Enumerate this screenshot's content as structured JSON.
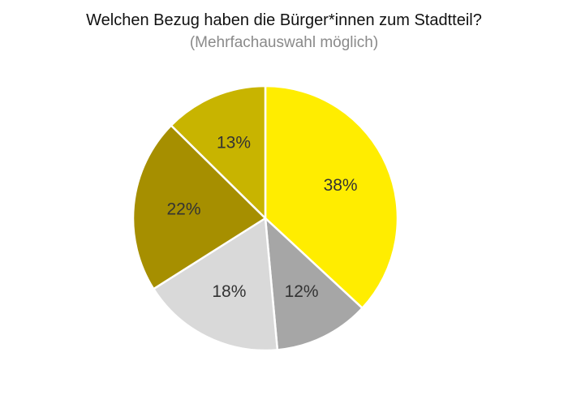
{
  "chart_data": {
    "type": "pie",
    "title": "Welchen Bezug haben die Bürger*innen zum Stadtteil?",
    "subtitle": "(Mehrfachauswahl möglich)",
    "start": "12 o'clock",
    "direction": "clockwise",
    "legend": "none",
    "slices": [
      {
        "value": 38,
        "label": "38%",
        "color": "#FFED00"
      },
      {
        "value": 12,
        "label": "12%",
        "color": "#A6A6A6"
      },
      {
        "value": 18,
        "label": "18%",
        "color": "#D9D9D9"
      },
      {
        "value": 22,
        "label": "22%",
        "color": "#A68F00"
      },
      {
        "value": 13,
        "label": "13%",
        "color": "#C8B400"
      }
    ]
  }
}
